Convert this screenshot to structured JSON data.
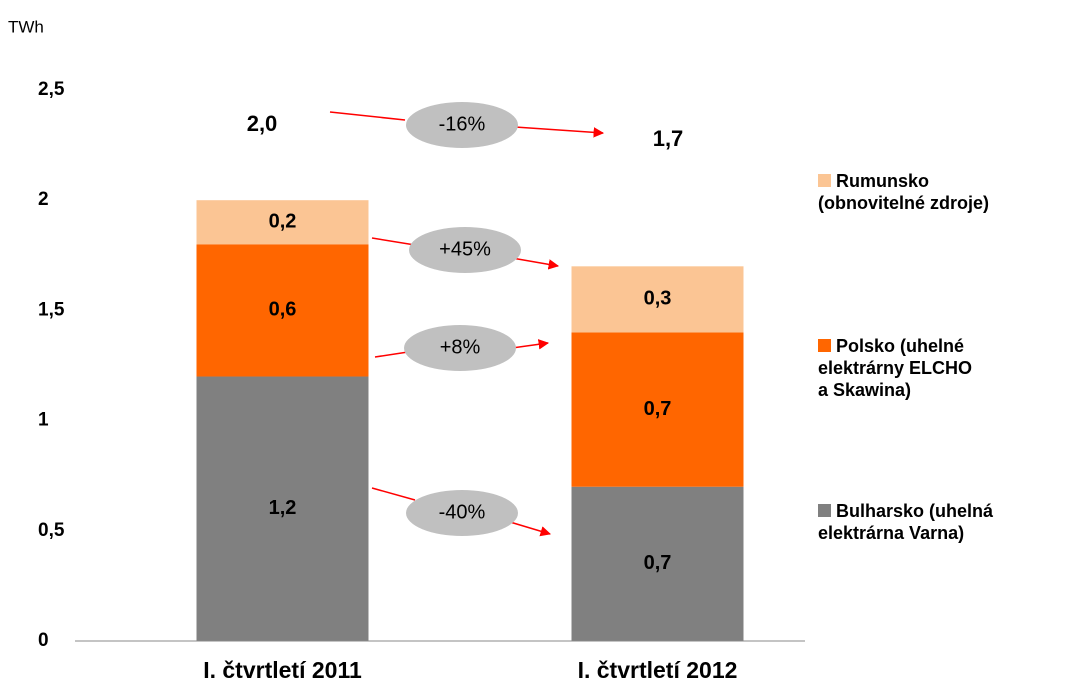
{
  "chart_data": {
    "type": "stacked_bar",
    "y_label": "TWh",
    "categories": [
      "I. čtvrtletí 2011",
      "I. čtvrtletí 2012"
    ],
    "series": [
      {
        "name": "Bulharsko (uhelná elektrárna Varna)",
        "color": "#808080",
        "values": [
          1.2,
          0.7
        ],
        "value_labels": [
          "1,2",
          "0,7"
        ]
      },
      {
        "name": "Polsko (uhelné elektrárny ELCHO a Skawina)",
        "color": "#ff6600",
        "values": [
          0.6,
          0.7
        ],
        "value_labels": [
          "0,6",
          "0,7"
        ]
      },
      {
        "name": "Rumunsko (obnovitelné zdroje)",
        "color": "#fbc594",
        "values": [
          0.2,
          0.3
        ],
        "value_labels": [
          "0,2",
          "0,3"
        ]
      }
    ],
    "ylim": [
      0,
      2.5
    ],
    "yticks": [
      0,
      {
        "value": 0.5,
        "label": "0,5"
      },
      1,
      {
        "value": 1.5,
        "label": "1,5"
      },
      2,
      {
        "value": 2.5,
        "label": "2,5"
      }
    ],
    "grid": false,
    "legend": "right",
    "annotations": [
      {
        "text": "2,0"
      },
      {
        "text": "1,7"
      },
      {
        "text": "-16%"
      },
      {
        "text": "+45%"
      },
      {
        "text": "+8%"
      },
      {
        "text": "-40%"
      }
    ]
  }
}
